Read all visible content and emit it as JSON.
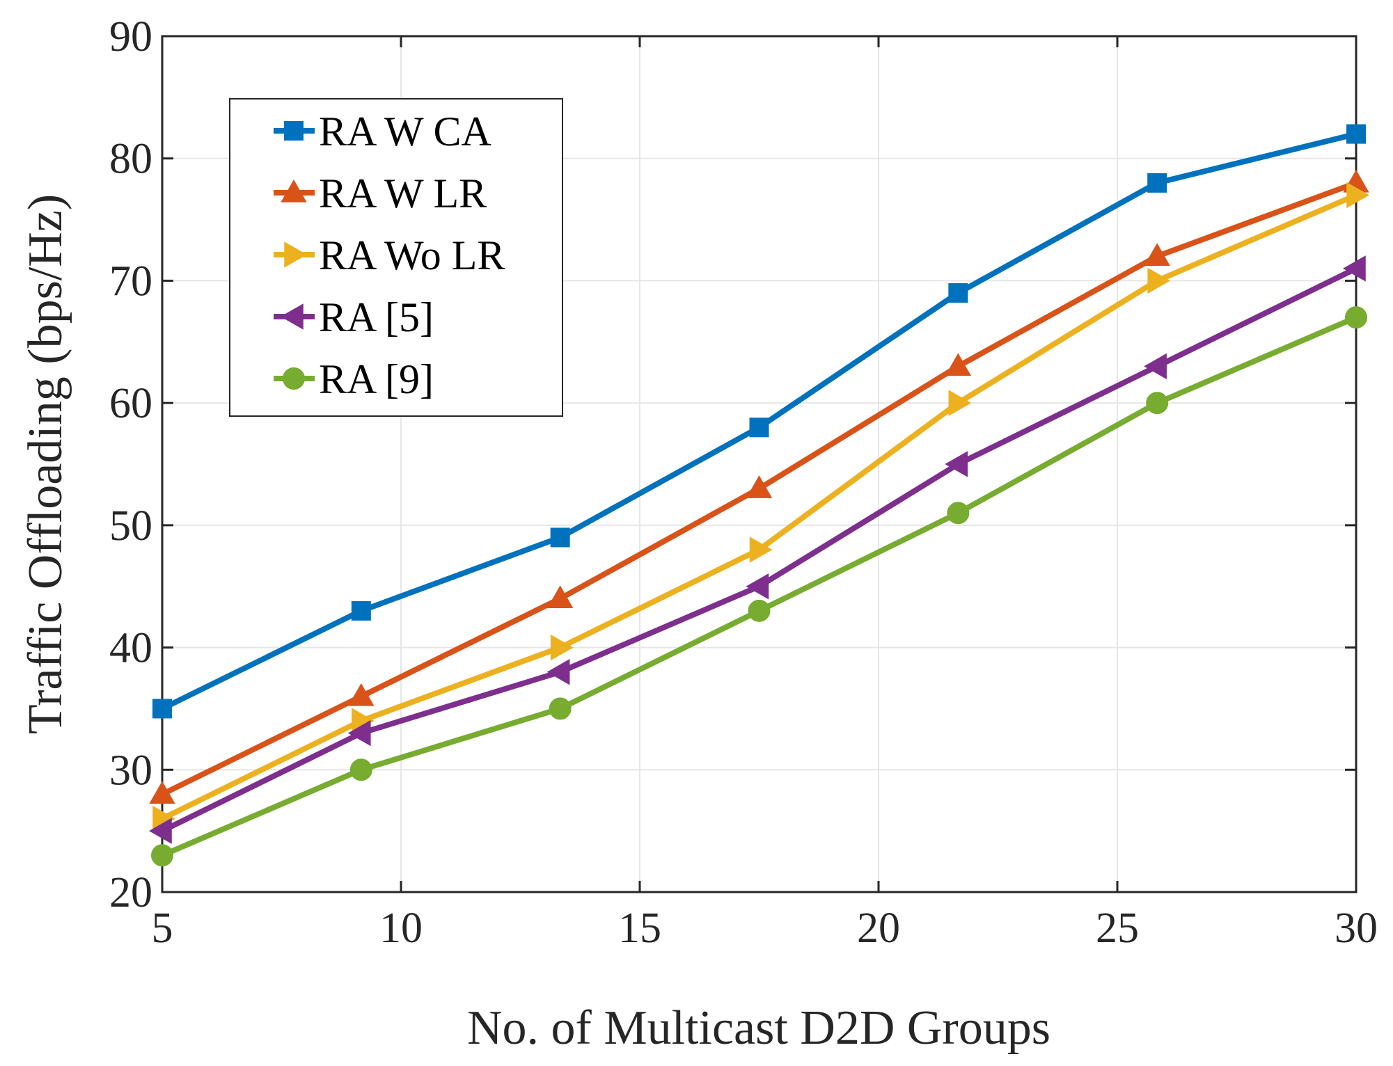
{
  "chart_data": {
    "type": "line",
    "title": "",
    "xlabel": "No. of Multicast D2D Groups",
    "ylabel": "Traffic Offloading (bps/Hz)",
    "xlim": [
      5,
      30
    ],
    "ylim": [
      20,
      90
    ],
    "xticks": [
      5,
      10,
      15,
      20,
      25,
      30
    ],
    "yticks": [
      20,
      30,
      40,
      50,
      60,
      70,
      80,
      90
    ],
    "x": [
      5,
      9.1667,
      13.3333,
      17.5,
      21.6667,
      25.8333,
      30
    ],
    "grid": true,
    "legend_position": "top-left",
    "series": [
      {
        "name": "RA W CA",
        "marker": "square",
        "color": "#0072BD",
        "values": [
          35,
          43,
          49,
          58,
          69,
          78,
          82
        ]
      },
      {
        "name": "RA W LR",
        "marker": "triangle-up",
        "color": "#D95319",
        "values": [
          28,
          36,
          44,
          53,
          63,
          72,
          78
        ]
      },
      {
        "name": "RA Wo LR",
        "marker": "triangle-right",
        "color": "#EDB120",
        "values": [
          26,
          34,
          40,
          48,
          60,
          70,
          77
        ]
      },
      {
        "name": "RA [5]",
        "marker": "triangle-left",
        "color": "#7E2F8E",
        "values": [
          25,
          33,
          38,
          45,
          55,
          63,
          71
        ]
      },
      {
        "name": "RA [9]",
        "marker": "circle",
        "color": "#77AC30",
        "values": [
          23,
          30,
          35,
          43,
          51,
          60,
          67
        ]
      }
    ]
  }
}
